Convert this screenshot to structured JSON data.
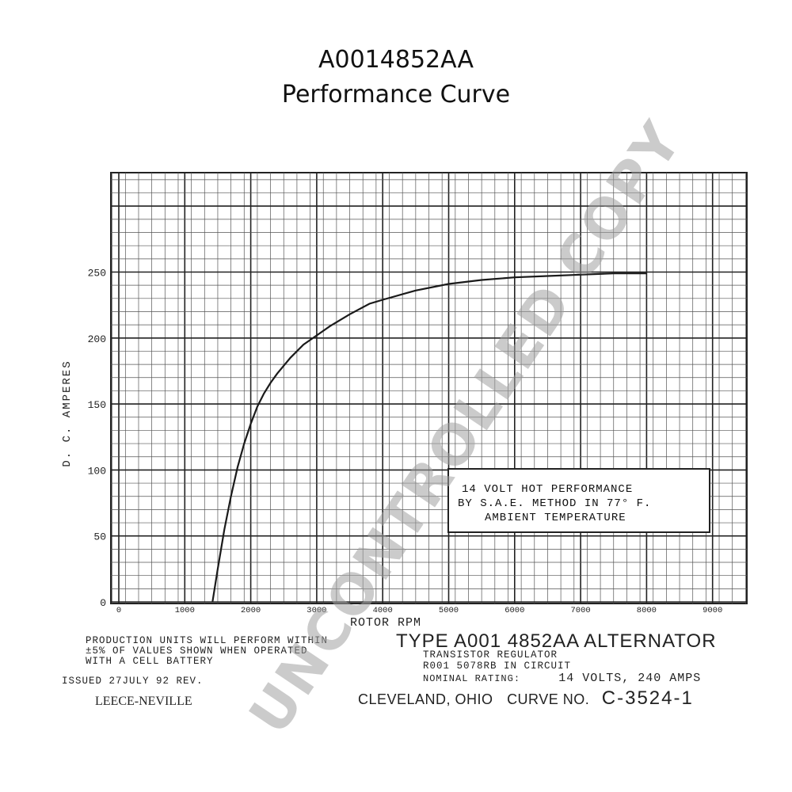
{
  "header": {
    "title": "A0014852AA",
    "subtitle": "Performance Curve"
  },
  "chart_data": {
    "type": "line",
    "xlabel": "ROTOR RPM",
    "ylabel": "D. C. AMPERES",
    "xlim": [
      0,
      9500
    ],
    "ylim": [
      0,
      300
    ],
    "x_ticks": [
      "0",
      "1000",
      "2000",
      "3000",
      "4000",
      "5000",
      "6000",
      "7000",
      "8000",
      "9000"
    ],
    "y_ticks": [
      "0",
      "50",
      "100",
      "150",
      "200",
      "250"
    ],
    "grid": true,
    "series": [
      {
        "x": [
          1420,
          1500,
          1600,
          1700,
          1800,
          1900,
          2000,
          2100,
          2200,
          2300,
          2400,
          2600,
          2800,
          3000,
          3200,
          3500,
          3800,
          4000,
          4500,
          5000,
          5500,
          6000,
          6500,
          7000,
          7500,
          8000
        ],
        "y": [
          0,
          25,
          55,
          80,
          102,
          120,
          135,
          148,
          158,
          166,
          173,
          185,
          195,
          202,
          209,
          218,
          226,
          229,
          236,
          241,
          244,
          246,
          247,
          248,
          249,
          249
        ]
      }
    ],
    "annotations": [
      "14 VOLT HOT PERFORMANCE",
      "BY S.A.E. METHOD IN 77° F.",
      "AMBIENT TEMPERATURE"
    ]
  },
  "notes": {
    "production_lines": [
      "PRODUCTION UNITS WILL PERFORM WITHIN",
      "±5% OF VALUES SHOWN WHEN OPERATED",
      "WITH A    CELL BATTERY"
    ],
    "issued": "ISSUED 27JULY 92 REV.",
    "brand": "LEECE-NEVILLE"
  },
  "spec": {
    "type_line": "TYPE A001 4852AA ALTERNATOR",
    "regulator": "TRANSISTOR REGULATOR",
    "circuit": "R001 5078RB IN CIRCUIT",
    "rating_label": "NOMINAL RATING:",
    "rating_value": "14 VOLTS, 240 AMPS",
    "location": "CLEVELAND, OHIO",
    "curve_label": "CURVE NO.",
    "curve_no": "C-3524-1"
  },
  "watermark": "UNCONTROLLED COPY"
}
